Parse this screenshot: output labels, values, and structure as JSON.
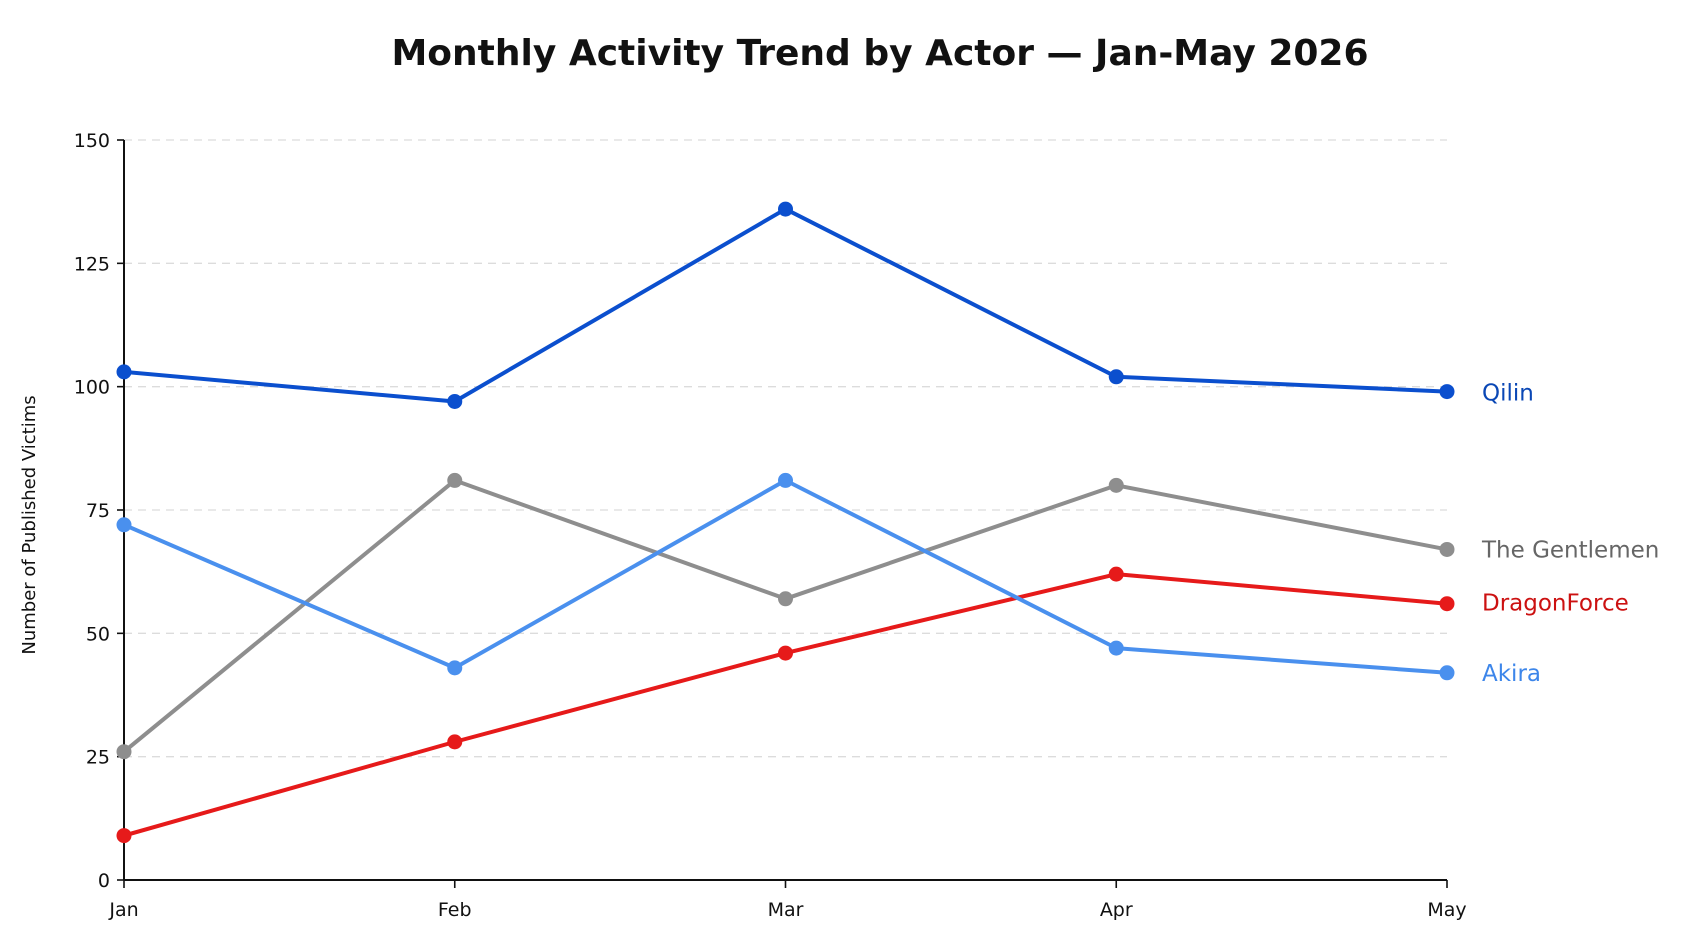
{
  "chart_data": {
    "type": "line",
    "title": "Monthly Activity Trend by Actor — Jan-May 2026",
    "xlabel": "",
    "ylabel": "Number of Published Victims",
    "categories": [
      "Jan",
      "Feb",
      "Mar",
      "Apr",
      "May"
    ],
    "ylim": [
      0,
      150
    ],
    "yticks": [
      0,
      25,
      50,
      75,
      100,
      125,
      150
    ],
    "grid": true,
    "legend": "inline-right",
    "series": [
      {
        "name": "Qilin",
        "color": "#0b4fce",
        "label_color": "#0a47b5",
        "values": [
          103,
          97,
          136,
          102,
          99
        ]
      },
      {
        "name": "The Gentlemen",
        "color": "#8e8e8e",
        "label_color": "#666666",
        "values": [
          26,
          81,
          57,
          80,
          67
        ]
      },
      {
        "name": "DragonForce",
        "color": "#e61a1a",
        "label_color": "#cc1111",
        "values": [
          9,
          28,
          46,
          62,
          56
        ]
      },
      {
        "name": "Akira",
        "color": "#4a90ee",
        "label_color": "#3d86ea",
        "values": [
          72,
          43,
          81,
          47,
          42
        ]
      }
    ]
  }
}
